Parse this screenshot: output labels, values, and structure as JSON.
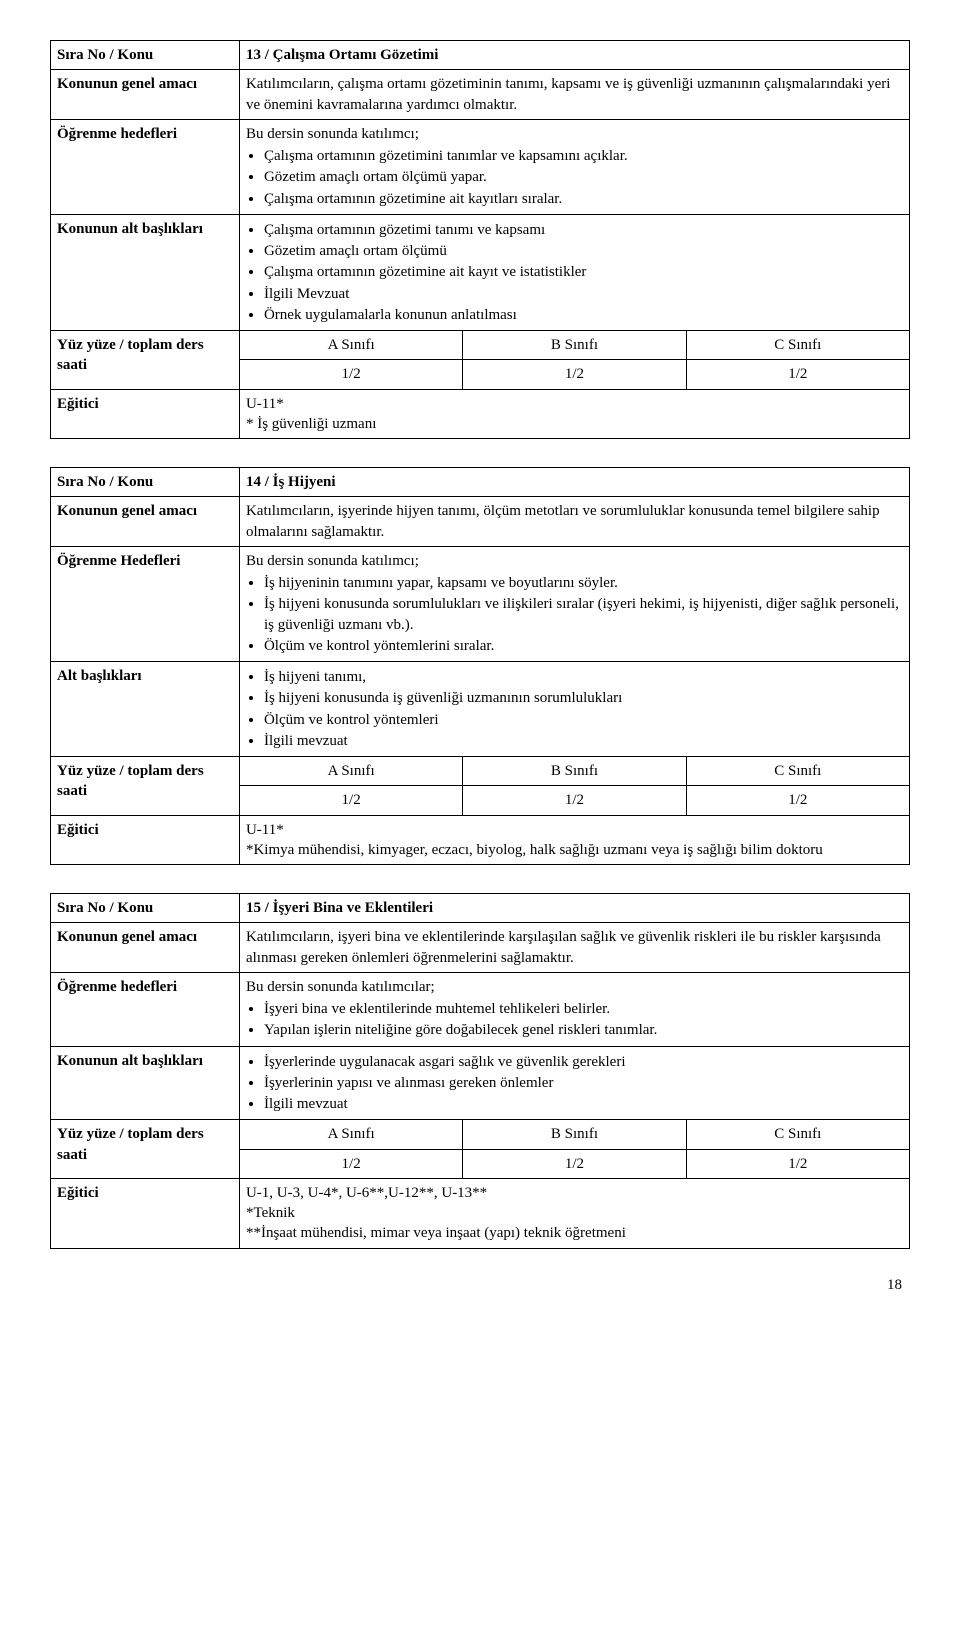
{
  "tables": [
    {
      "rows": [
        {
          "label": "Sıra No / Konu",
          "title": "13 / Çalışma Ortamı Gözetimi"
        },
        {
          "label": "Konunun genel amacı",
          "text": "Katılımcıların, çalışma ortamı gözetiminin tanımı, kapsamı ve iş güvenliği uzmanının çalışmalarındaki yeri ve önemini kavramalarına yardımcı olmaktır."
        },
        {
          "label": "Öğrenme hedefleri",
          "intro": "Bu dersin sonunda katılımcı;",
          "items": [
            "Çalışma ortamının gözetimini tanımlar ve kapsamını açıklar.",
            "Gözetim amaçlı ortam ölçümü yapar.",
            "Çalışma ortamının gözetimine ait kayıtları sıralar."
          ]
        },
        {
          "label": "Konunun alt başlıkları",
          "items": [
            "Çalışma ortamının gözetimi tanımı ve kapsamı",
            "Gözetim amaçlı ortam ölçümü",
            "Çalışma ortamının gözetimine ait kayıt ve istatistikler",
            "İlgili Mevzuat",
            "Örnek uygulamalarla konunun anlatılması"
          ]
        },
        {
          "label": "Yüz yüze / toplam ders saati",
          "classes": [
            "A Sınıfı",
            "B Sınıfı",
            "C Sınıfı"
          ],
          "hours": [
            "1/2",
            "1/2",
            "1/2"
          ]
        },
        {
          "label": "Eğitici",
          "lines": [
            "U-11*",
            "* İş güvenliği uzmanı"
          ]
        }
      ]
    },
    {
      "rows": [
        {
          "label": "Sıra No / Konu",
          "title": "14 / İş Hijyeni"
        },
        {
          "label": "Konunun genel amacı",
          "text": "Katılımcıların, işyerinde hijyen tanımı, ölçüm metotları ve sorumluluklar konusunda temel bilgilere sahip olmalarını sağlamaktır."
        },
        {
          "label": "Öğrenme Hedefleri",
          "intro": "Bu dersin sonunda katılımcı;",
          "items": [
            "İş hijyeninin tanımını yapar, kapsamı ve boyutlarını söyler.",
            "İş hijyeni konusunda sorumlulukları ve ilişkileri sıralar (işyeri hekimi, iş hijyenisti, diğer sağlık personeli, iş güvenliği uzmanı vb.).",
            "Ölçüm ve kontrol yöntemlerini sıralar."
          ]
        },
        {
          "label": "Alt başlıkları",
          "items": [
            "İş hijyeni tanımı,",
            "İş hijyeni konusunda iş güvenliği uzmanının sorumlulukları",
            "Ölçüm ve kontrol yöntemleri",
            "İlgili mevzuat"
          ]
        },
        {
          "label": "Yüz yüze / toplam ders saati",
          "classes": [
            "A Sınıfı",
            "B Sınıfı",
            "C Sınıfı"
          ],
          "hours": [
            "1/2",
            "1/2",
            "1/2"
          ]
        },
        {
          "label": "Eğitici",
          "lines": [
            "U-11*",
            "*Kimya mühendisi, kimyager, eczacı, biyolog, halk sağlığı uzmanı veya iş sağlığı bilim doktoru"
          ]
        }
      ]
    },
    {
      "rows": [
        {
          "label": "Sıra No / Konu",
          "title": "15 / İşyeri Bina ve Eklentileri"
        },
        {
          "label": "Konunun genel amacı",
          "text": "Katılımcıların, işyeri bina ve eklentilerinde karşılaşılan sağlık ve güvenlik riskleri ile bu riskler karşısında alınması gereken önlemleri öğrenmelerini sağlamaktır."
        },
        {
          "label": "Öğrenme hedefleri",
          "intro": "Bu dersin sonunda katılımcılar;",
          "items": [
            "İşyeri bina ve eklentilerinde muhtemel tehlikeleri belirler.",
            "Yapılan işlerin niteliğine göre doğabilecek genel riskleri tanımlar."
          ]
        },
        {
          "label": "Konunun alt başlıkları",
          "items": [
            "İşyerlerinde uygulanacak asgari sağlık ve güvenlik gerekleri",
            "İşyerlerinin yapısı ve alınması gereken önlemler",
            "İlgili mevzuat"
          ]
        },
        {
          "label": "Yüz yüze / toplam ders saati",
          "classes": [
            "A Sınıfı",
            "B Sınıfı",
            "C Sınıfı"
          ],
          "hours": [
            "1/2",
            "1/2",
            "1/2"
          ]
        },
        {
          "label": "Eğitici",
          "lines": [
            "U-1, U-3, U-4*, U-6**,U-12**, U-13**",
            "*Teknik",
            "**İnşaat mühendisi, mimar veya inşaat (yapı) teknik öğretmeni"
          ]
        }
      ]
    }
  ],
  "pageNumber": "18"
}
